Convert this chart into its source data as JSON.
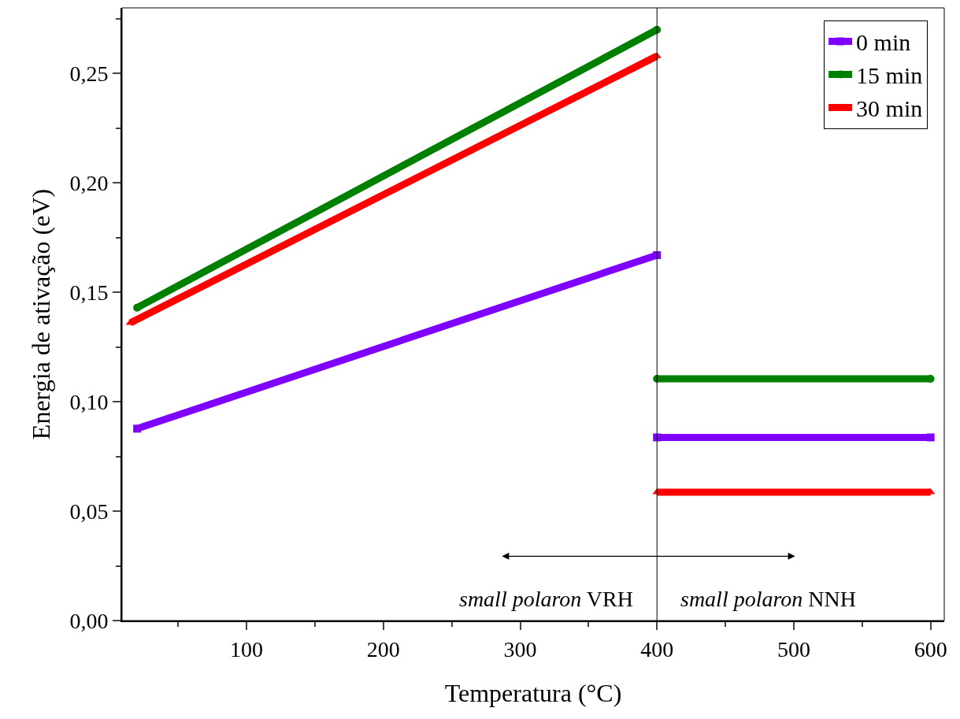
{
  "chart_data": {
    "type": "line",
    "xlabel": "Temperatura (°C)",
    "ylabel": "Energia de ativação (eV)",
    "xlim": [
      9,
      610
    ],
    "xticks": [
      100,
      200,
      300,
      400,
      500,
      600
    ],
    "ylim": [
      0,
      0.28
    ],
    "yticks": [
      {
        "value": 0,
        "label": "0,00"
      },
      {
        "value": 0.05,
        "label": "0,05"
      },
      {
        "value": 0.1,
        "label": "0,10"
      },
      {
        "value": 0.15,
        "label": "0,15"
      },
      {
        "value": 0.2,
        "label": "0,20"
      },
      {
        "value": 0.25,
        "label": "0,25"
      }
    ],
    "grid": false,
    "legend": "top right",
    "line_style": "solid",
    "series": [
      {
        "name": "0 min",
        "color": "#8000ff",
        "marker": "square",
        "x": [
          20,
          400,
          null,
          400,
          600
        ],
        "values": [
          0.0877,
          0.167,
          null,
          0.0837,
          0.0837
        ]
      },
      {
        "name": "15 min",
        "color": "#008000",
        "marker": "circle",
        "x": [
          20,
          400,
          null,
          400,
          600
        ],
        "values": [
          0.143,
          0.27,
          null,
          0.1105,
          0.1105
        ]
      },
      {
        "name": "30 min",
        "color": "#ff0000",
        "marker": "triangle",
        "x": [
          15,
          400,
          null,
          400,
          600
        ],
        "values": [
          0.136,
          0.258,
          null,
          0.0587,
          0.0587
        ]
      }
    ],
    "ref_lines": [
      {
        "axis": "x",
        "value": 400,
        "color": "#000000"
      }
    ],
    "annotations": [
      "small polaron VRH",
      "small polaron NNH"
    ]
  }
}
